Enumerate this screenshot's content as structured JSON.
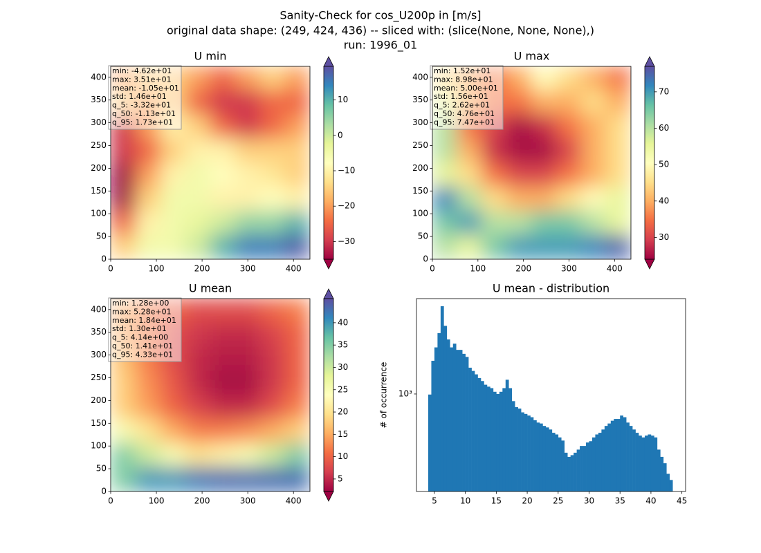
{
  "title": [
    "Sanity-Check for cos_U200p in [m/s]",
    "original data shape: (249, 424, 436) -- sliced with: (slice(None, None, None),)",
    "run: 1996_01"
  ],
  "chart_data": [
    {
      "type": "heatmap",
      "title": "U min",
      "stats": [
        "min: -4.62e+01",
        "max: 3.51e+01",
        "mean: -1.05e+01",
        "std: 1.46e+01",
        "q_5: -3.32e+01",
        "q_50: -1.13e+01",
        "q_95: 1.73e+01"
      ],
      "xlim": [
        0,
        436
      ],
      "ylim": [
        0,
        424
      ],
      "xticks": [
        0,
        100,
        200,
        300,
        400
      ],
      "yticks": [
        0,
        50,
        100,
        150,
        200,
        250,
        300,
        350,
        400
      ],
      "clim": [
        -35,
        19.5
      ],
      "cticks": [
        {
          "value": -30,
          "label": "−30"
        },
        {
          "value": -20,
          "label": "−20"
        },
        {
          "value": -10,
          "label": "−10"
        },
        0,
        10
      ],
      "colormap": [
        "#9e0142",
        "#d53e4f",
        "#f46d43",
        "#fdae61",
        "#fee08b",
        "#ffffbf",
        "#e6f598",
        "#abdda4",
        "#66c2a5",
        "#3288bd",
        "#5e4fa2"
      ],
      "grid": [
        [
          -20,
          -15,
          -15,
          -20,
          -25,
          -20,
          -15,
          -20
        ],
        [
          -15,
          -20,
          -15,
          -25,
          -30,
          -30,
          -25,
          -25
        ],
        [
          -30,
          -20,
          -10,
          -15,
          -25,
          -30,
          -25,
          -20
        ],
        [
          -30,
          -25,
          -15,
          -10,
          -10,
          -15,
          -15,
          -15
        ],
        [
          -35,
          -20,
          -10,
          -5,
          -8,
          -10,
          -12,
          -15
        ],
        [
          -35,
          -15,
          -5,
          -5,
          -10,
          -10,
          -8,
          -10
        ],
        [
          -25,
          -10,
          -5,
          -3,
          0,
          5,
          5,
          10
        ],
        [
          -15,
          -5,
          -5,
          0,
          10,
          15,
          15,
          18
        ]
      ]
    },
    {
      "type": "heatmap",
      "title": "U max",
      "stats": [
        "min: 1.52e+01",
        "max: 8.98e+01",
        "mean: 5.00e+01",
        "std: 1.56e+01",
        "q_5: 2.62e+01",
        "q_50: 4.76e+01",
        "q_95: 7.47e+01"
      ],
      "xlim": [
        0,
        436
      ],
      "ylim": [
        0,
        424
      ],
      "xticks": [
        0,
        100,
        200,
        300,
        400
      ],
      "yticks": [
        0,
        50,
        100,
        150,
        200,
        250,
        300,
        350,
        400
      ],
      "clim": [
        24,
        77
      ],
      "cticks": [
        30,
        40,
        50,
        60,
        70
      ],
      "colormap": [
        "#9e0142",
        "#d53e4f",
        "#f46d43",
        "#fdae61",
        "#fee08b",
        "#ffffbf",
        "#e6f598",
        "#abdda4",
        "#66c2a5",
        "#3288bd",
        "#5e4fa2"
      ],
      "grid": [
        [
          45,
          40,
          35,
          40,
          50,
          45,
          40,
          35
        ],
        [
          55,
          40,
          35,
          35,
          40,
          40,
          45,
          40
        ],
        [
          60,
          35,
          30,
          25,
          28,
          35,
          40,
          45
        ],
        [
          60,
          40,
          28,
          25,
          25,
          30,
          40,
          45
        ],
        [
          55,
          45,
          35,
          30,
          30,
          35,
          40,
          45
        ],
        [
          72,
          60,
          45,
          40,
          40,
          45,
          50,
          55
        ],
        [
          65,
          70,
          60,
          60,
          65,
          65,
          60,
          55
        ],
        [
          60,
          55,
          65,
          70,
          70,
          70,
          72,
          75
        ]
      ]
    },
    {
      "type": "heatmap",
      "title": "U mean",
      "stats": [
        "min: 1.28e+00",
        "max: 5.28e+01",
        "mean: 1.84e+01",
        "std: 1.30e+01",
        "q_5: 4.14e+00",
        "q_50: 1.41e+01",
        "q_95: 4.33e+01"
      ],
      "xlim": [
        0,
        436
      ],
      "ylim": [
        0,
        424
      ],
      "xticks": [
        0,
        100,
        200,
        300,
        400
      ],
      "yticks": [
        0,
        50,
        100,
        150,
        200,
        250,
        300,
        350,
        400
      ],
      "clim": [
        2.2,
        45.4
      ],
      "cticks": [
        5,
        10,
        15,
        20,
        25,
        30,
        35,
        40
      ],
      "colormap": [
        "#9e0142",
        "#d53e4f",
        "#f46d43",
        "#fdae61",
        "#fee08b",
        "#ffffbf",
        "#e6f598",
        "#abdda4",
        "#66c2a5",
        "#3288bd",
        "#5e4fa2"
      ],
      "grid": [
        [
          15,
          12,
          10,
          8,
          8,
          8,
          10,
          12
        ],
        [
          15,
          12,
          8,
          6,
          5,
          5,
          7,
          10
        ],
        [
          17,
          12,
          8,
          5,
          4,
          4,
          6,
          10
        ],
        [
          18,
          13,
          9,
          5,
          3,
          3,
          6,
          10
        ],
        [
          18,
          14,
          10,
          7,
          5,
          5,
          8,
          12
        ],
        [
          25,
          20,
          15,
          12,
          12,
          13,
          15,
          18
        ],
        [
          35,
          30,
          25,
          20,
          22,
          25,
          30,
          35
        ],
        [
          35,
          40,
          40,
          42,
          43,
          43,
          43,
          43
        ]
      ]
    },
    {
      "type": "histogram",
      "title": "U mean - distribution",
      "ylabel": "# of occurrence",
      "color": "#1f77b4",
      "log_y": true,
      "xlim": [
        2.1,
        45.6
      ],
      "ylim": [
        175,
        5500
      ],
      "xticks": [
        5,
        10,
        15,
        20,
        25,
        30,
        35,
        40,
        45
      ],
      "yticks": [
        {
          "value": 1000,
          "label": "10³"
        }
      ],
      "bins": [
        4,
        4.5,
        5,
        5.5,
        6,
        6.5,
        7,
        7.5,
        8,
        8.5,
        9,
        9.5,
        10,
        10.5,
        11,
        11.5,
        12,
        12.5,
        13,
        13.5,
        14,
        14.5,
        15,
        15.5,
        16,
        16.5,
        17,
        17.5,
        18,
        18.5,
        19,
        19.5,
        20,
        20.5,
        21,
        21.5,
        22,
        22.5,
        23,
        23.5,
        24,
        24.5,
        25,
        25.5,
        26,
        26.5,
        27,
        27.5,
        28,
        28.5,
        29,
        29.5,
        30,
        30.5,
        31,
        31.5,
        32,
        32.5,
        33,
        33.5,
        34,
        34.5,
        35,
        35.5,
        36,
        36.5,
        37,
        37.5,
        38,
        38.5,
        39,
        39.5,
        40,
        40.5,
        41,
        41.5,
        42,
        42.5,
        43,
        43.5
      ],
      "values": [
        990,
        1810,
        2300,
        2970,
        4800,
        3380,
        2650,
        2300,
        2460,
        2200,
        2200,
        2050,
        1940,
        1600,
        1510,
        1420,
        1330,
        1260,
        1180,
        1140,
        1110,
        1040,
        1000,
        1040,
        1110,
        1290,
        1110,
        880,
        790,
        770,
        720,
        700,
        680,
        660,
        625,
        600,
        590,
        565,
        550,
        530,
        500,
        485,
        460,
        435,
        350,
        325,
        335,
        350,
        370,
        395,
        395,
        420,
        430,
        460,
        485,
        500,
        530,
        565,
        590,
        620,
        640,
        640,
        680,
        660,
        600,
        565,
        530,
        500,
        475,
        460,
        475,
        485,
        475,
        460,
        370,
        325,
        290,
        240,
        215
      ]
    }
  ]
}
